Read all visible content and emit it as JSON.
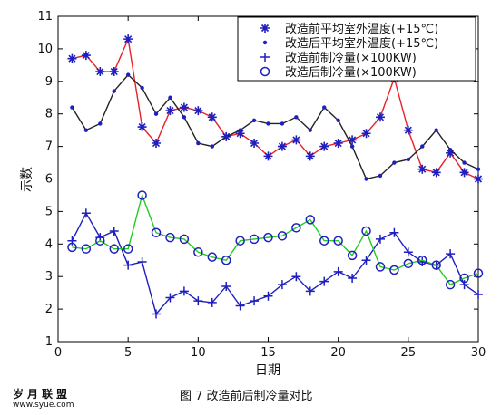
{
  "figure": {
    "caption": "图 7 改造前后制冷量对比",
    "site_name": "岁月联盟",
    "site_url": "www.syue.com"
  },
  "chart_data": {
    "type": "line",
    "xlabel": "日期",
    "ylabel": "示数",
    "xlim": [
      0,
      30
    ],
    "ylim": [
      1,
      11
    ],
    "xticks": [
      0,
      5,
      10,
      15,
      20,
      25,
      30
    ],
    "yticks": [
      1,
      2,
      3,
      4,
      5,
      6,
      7,
      8,
      9,
      10,
      11
    ],
    "grid": false,
    "legend_position": "top-right",
    "series": [
      {
        "name": "改造前平均室外温度(+15℃)",
        "color": "#e8202a",
        "marker": "star",
        "marker_color": "#1f1fbf",
        "x": [
          1,
          2,
          3,
          4,
          5,
          6,
          7,
          8,
          9,
          10,
          11,
          12,
          13,
          14,
          15,
          16,
          17,
          18,
          19,
          20,
          21,
          22,
          23,
          24,
          25,
          26,
          27,
          28,
          29,
          30
        ],
        "values": [
          9.7,
          9.8,
          9.3,
          9.3,
          10.3,
          7.6,
          7.1,
          8.1,
          8.2,
          8.1,
          7.9,
          7.3,
          7.4,
          7.1,
          6.7,
          7.0,
          7.2,
          6.7,
          7.0,
          7.1,
          7.2,
          7.4,
          7.9,
          9.1,
          7.5,
          6.3,
          6.2,
          6.8,
          6.2,
          6.0
        ]
      },
      {
        "name": "改造后平均室外温度(+15℃)",
        "color": "#222222",
        "marker": "dot",
        "marker_color": "#1f1fbf",
        "x": [
          1,
          2,
          3,
          4,
          5,
          6,
          7,
          8,
          9,
          10,
          11,
          12,
          13,
          14,
          15,
          16,
          17,
          18,
          19,
          20,
          21,
          22,
          23,
          24,
          25,
          26,
          27,
          28,
          29,
          30
        ],
        "values": [
          8.2,
          7.5,
          7.7,
          8.7,
          9.2,
          8.8,
          8.0,
          8.5,
          7.9,
          7.1,
          7.0,
          7.3,
          7.5,
          7.8,
          7.7,
          7.7,
          7.9,
          7.5,
          8.2,
          7.8,
          7.0,
          6.0,
          6.1,
          6.5,
          6.6,
          7.0,
          7.5,
          6.9,
          6.5,
          6.3
        ]
      },
      {
        "name": "改造前制冷量(×100KW)",
        "color": "#1f1fbf",
        "marker": "plus",
        "marker_color": "#1f1fbf",
        "x": [
          1,
          2,
          3,
          4,
          5,
          6,
          7,
          8,
          9,
          10,
          11,
          12,
          13,
          14,
          15,
          16,
          17,
          18,
          19,
          20,
          21,
          22,
          23,
          24,
          25,
          26,
          27,
          28,
          29,
          30
        ],
        "values": [
          4.1,
          4.95,
          4.2,
          4.4,
          3.35,
          3.45,
          1.85,
          2.35,
          2.55,
          2.25,
          2.2,
          2.7,
          2.1,
          2.25,
          2.4,
          2.75,
          3.0,
          2.55,
          2.85,
          3.15,
          2.95,
          3.5,
          4.15,
          4.35,
          3.75,
          3.45,
          3.35,
          3.7,
          2.75,
          2.45
        ]
      },
      {
        "name": "改造后制冷量(×100KW)",
        "color": "#22cc22",
        "marker": "circle",
        "marker_color": "#1f1fbf",
        "x": [
          1,
          2,
          3,
          4,
          5,
          6,
          7,
          8,
          9,
          10,
          11,
          12,
          13,
          14,
          15,
          16,
          17,
          18,
          19,
          20,
          21,
          22,
          23,
          24,
          25,
          26,
          27,
          28,
          29,
          30
        ],
        "values": [
          3.9,
          3.85,
          4.1,
          3.85,
          3.85,
          5.5,
          4.35,
          4.2,
          4.15,
          3.75,
          3.6,
          3.5,
          4.1,
          4.15,
          4.2,
          4.25,
          4.5,
          4.75,
          4.1,
          4.1,
          3.65,
          4.4,
          3.3,
          3.2,
          3.4,
          3.5,
          3.35,
          2.75,
          2.95,
          3.1
        ]
      }
    ]
  }
}
